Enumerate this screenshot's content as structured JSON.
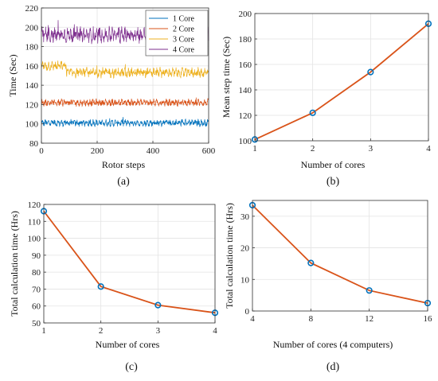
{
  "chart_data": [
    {
      "type": "line",
      "panel": "(a)",
      "xlabel": "Rotor steps",
      "ylabel": "Time (Sec)",
      "xlim": [
        0,
        600
      ],
      "ylim": [
        80,
        220
      ],
      "xticks": [
        0,
        200,
        400,
        600
      ],
      "yticks": [
        80,
        100,
        120,
        140,
        160,
        180,
        200,
        220
      ],
      "grid": true,
      "legend": "top-right",
      "series": [
        {
          "name": "1 Core",
          "color": "#0072BD",
          "mean": 101,
          "noise": 2.5,
          "x": [
            0,
            600
          ]
        },
        {
          "name": "2 Core",
          "color": "#D95319",
          "mean": 122,
          "noise": 2.5,
          "x": [
            0,
            600
          ]
        },
        {
          "name": "3 Core",
          "color": "#EDB120",
          "mean": 153,
          "noise": 3.5,
          "early": {
            "x_end": 90,
            "mean": 160
          },
          "x": [
            0,
            600
          ]
        },
        {
          "name": "4 Core",
          "color": "#7E2F8E",
          "mean": 192,
          "noise": 5.5,
          "x": [
            0,
            600
          ]
        }
      ]
    },
    {
      "type": "line",
      "panel": "(b)",
      "xlabel": "Number of cores",
      "ylabel": "Mean step time (Sec)",
      "xlim": [
        1,
        4
      ],
      "ylim": [
        100,
        200
      ],
      "xticks": [
        1,
        2,
        3,
        4
      ],
      "yticks": [
        100,
        120,
        140,
        160,
        180,
        200
      ],
      "grid": true,
      "x": [
        1,
        2,
        3,
        4
      ],
      "y": [
        101,
        122,
        154,
        192
      ],
      "line_color": "#D95319",
      "marker_color": "#0072BD"
    },
    {
      "type": "line",
      "panel": "(c)",
      "xlabel": "Number of cores",
      "ylabel": "Total calculation time (Hrs)",
      "xlim": [
        1,
        4
      ],
      "ylim": [
        50,
        120
      ],
      "xticks": [
        1,
        2,
        3,
        4
      ],
      "yticks": [
        50,
        60,
        70,
        80,
        90,
        100,
        110,
        120
      ],
      "grid": true,
      "x": [
        1,
        2,
        3,
        4
      ],
      "y": [
        116,
        71.5,
        60.5,
        56
      ],
      "line_color": "#D95319",
      "marker_color": "#0072BD"
    },
    {
      "type": "line",
      "panel": "(d)",
      "xlabel": "Number of cores (4 computers)",
      "ylabel": "Total calculation time (Hrs)",
      "xlim": [
        4,
        16
      ],
      "ylim": [
        0,
        35
      ],
      "xticks": [
        4,
        8,
        12,
        16
      ],
      "yticks": [
        0,
        10,
        20,
        30
      ],
      "grid": true,
      "x": [
        4,
        8,
        12,
        16
      ],
      "y": [
        33.5,
        15.2,
        6.5,
        2.5
      ],
      "line_color": "#D95319",
      "marker_color": "#0072BD"
    }
  ]
}
